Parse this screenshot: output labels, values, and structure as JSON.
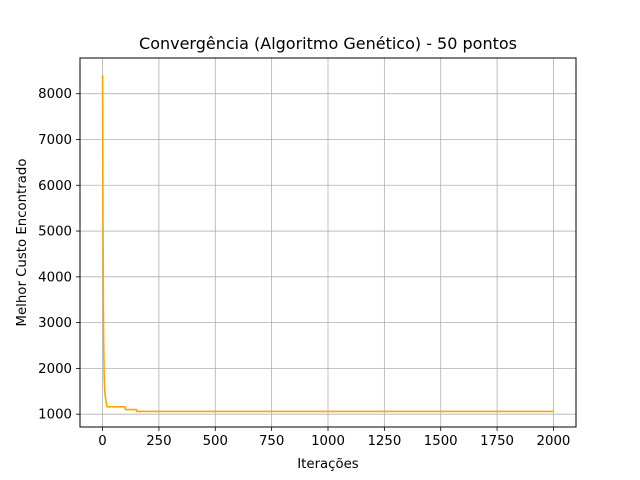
{
  "chart_data": {
    "type": "line",
    "title": "Convergência (Algoritmo Genético) - 50 pontos",
    "xlabel": "Iterações",
    "ylabel": "Melhor Custo Encontrado",
    "xlim": [
      -100,
      2100
    ],
    "ylim": [
      720,
      8780
    ],
    "xticks": [
      0,
      250,
      500,
      750,
      1000,
      1250,
      1500,
      1750,
      2000
    ],
    "yticks": [
      1000,
      2000,
      3000,
      4000,
      5000,
      6000,
      7000,
      8000
    ],
    "grid": true,
    "line_color": "#ffa500",
    "series": [
      {
        "x": [
          0,
          1,
          2,
          3,
          4,
          5,
          6,
          7,
          8,
          10,
          12,
          15,
          18,
          20,
          25,
          30,
          40,
          50,
          60,
          80,
          100,
          101,
          150,
          151,
          300,
          500,
          1000,
          1500,
          2000
        ],
        "y": [
          8400,
          7000,
          5200,
          4000,
          3100,
          2600,
          2200,
          1900,
          1700,
          1500,
          1400,
          1300,
          1200,
          1160,
          1160,
          1160,
          1160,
          1160,
          1160,
          1160,
          1160,
          1100,
          1100,
          1060,
          1060,
          1060,
          1060,
          1060,
          1060
        ]
      }
    ]
  }
}
